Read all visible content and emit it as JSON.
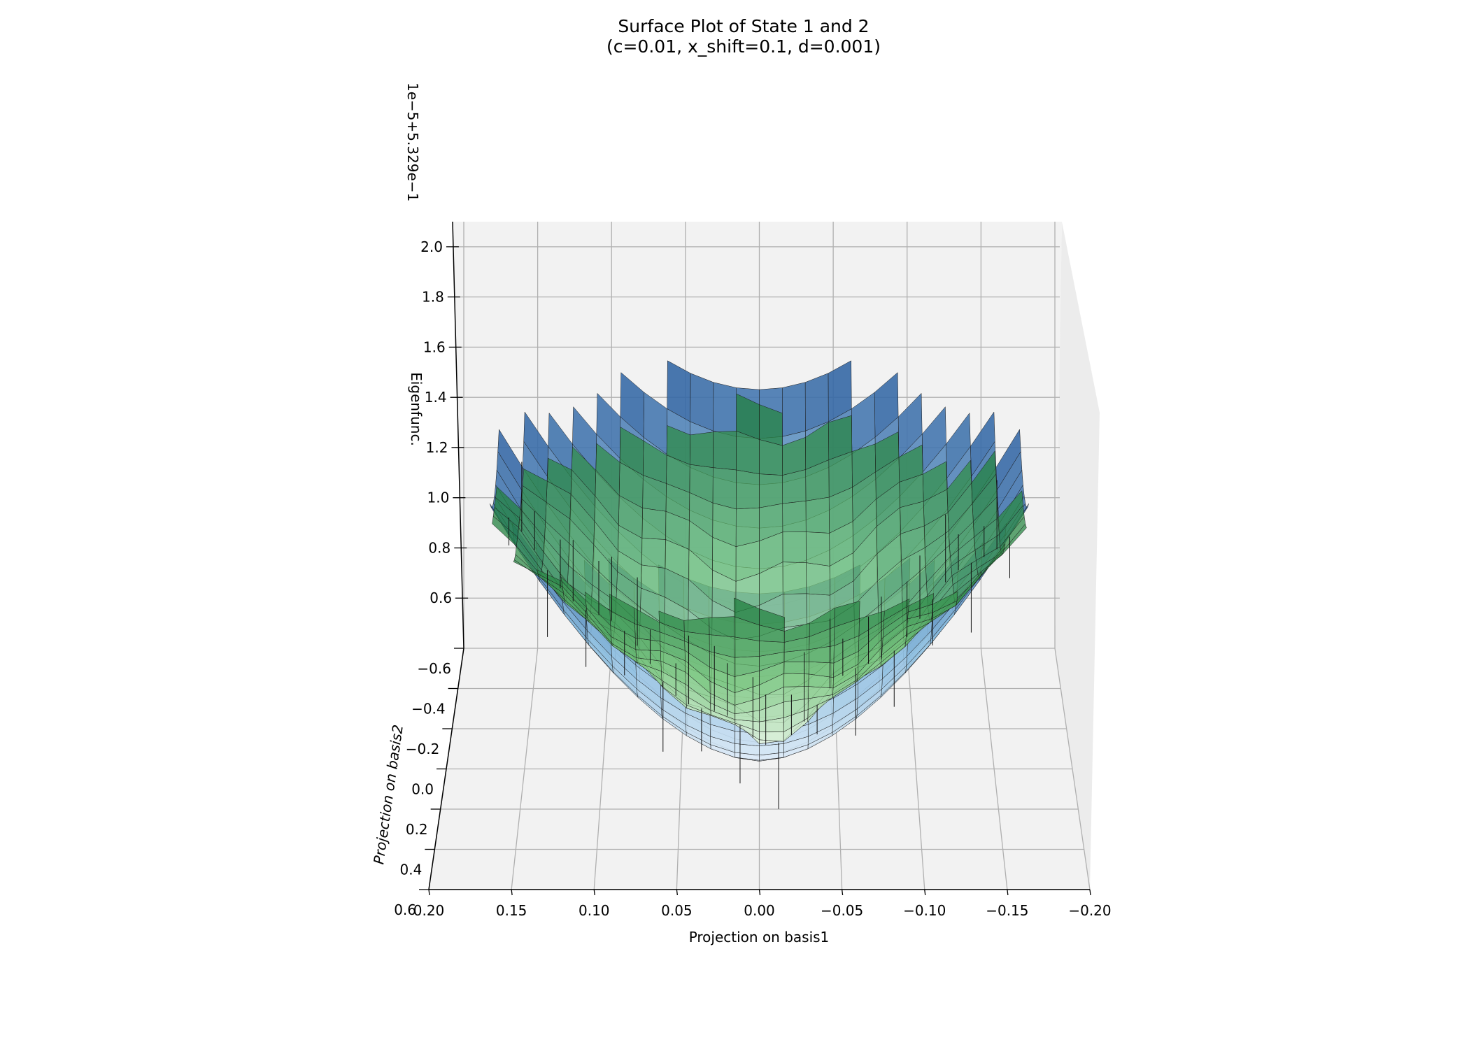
{
  "chart_data": {
    "type": "surface3d",
    "title": "Surface Plot of State 1 and 2",
    "subtitle": "(c=0.01, x_shift=0.1, d=0.001)",
    "xlabel": "Projection on basis1",
    "ylabel": "Projection on basis2",
    "zlabel": "Eigenfunc.",
    "z_offset_text": "1e−5+5.329e−1",
    "xlim": [
      0.2,
      -0.2
    ],
    "ylim": [
      -0.6,
      0.6
    ],
    "zlim": [
      0.4,
      2.1
    ],
    "x_ticks": [
      "0.20",
      "0.15",
      "0.10",
      "0.05",
      "0.00",
      "−0.05",
      "−0.10",
      "−0.15",
      "−0.20"
    ],
    "y_ticks": [
      "−0.6",
      "−0.4",
      "−0.2",
      "0.0",
      "0.2",
      "0.4",
      "0.6"
    ],
    "z_ticks": [
      "0.6",
      "0.8",
      "1.0",
      "1.2",
      "1.4",
      "1.6",
      "1.8",
      "2.0"
    ],
    "grid": true,
    "series": [
      {
        "colormap": "Blues",
        "color_light": "#e8f1fa",
        "color_mid": "#8fbfe0",
        "color_dark": "#1c4f94",
        "z_min": 0.45,
        "z_max": 1.65
      },
      {
        "colormap": "Greens",
        "color_light": "#e9f6e6",
        "color_mid": "#74c476",
        "color_dark": "#1a7a3a",
        "z_min": 0.5,
        "z_max": 1.45
      }
    ]
  }
}
